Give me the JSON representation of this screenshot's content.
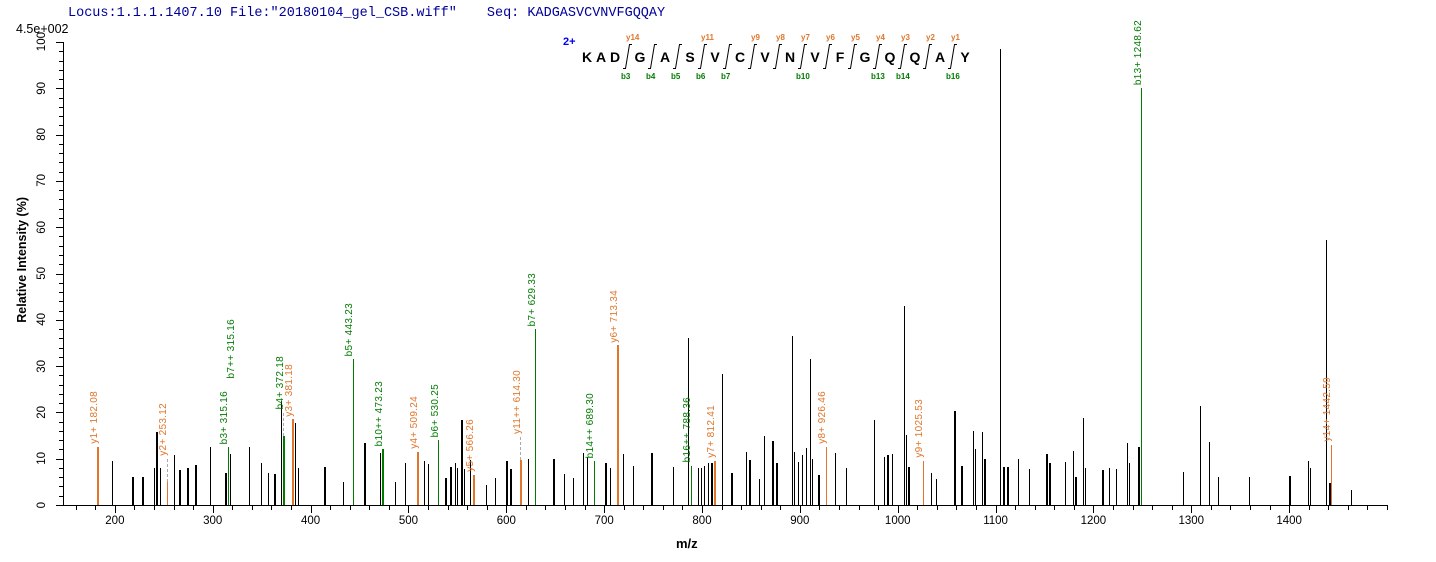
{
  "header": {
    "locus_file": "Locus:1.1.1.1407.10 File:\"20180104_gel_CSB.wiff\"",
    "seq_label": "Seq: ",
    "sequence_text": "KADGASVCVNVFGQQAY"
  },
  "axis_note": {
    "max_intensity_label": "4.5e+002"
  },
  "chart_data": {
    "type": "bar",
    "subtype": "ms2-mass-spectrum",
    "title": "",
    "xlabel": "m/z",
    "ylabel": "Relative  Intensity (%)",
    "xlim": [
      148,
      1500
    ],
    "ylim": [
      0,
      100
    ],
    "x_ticks": [
      200,
      300,
      400,
      500,
      600,
      700,
      800,
      900,
      1000,
      1100,
      1200,
      1300,
      1400
    ],
    "x_minor_step": 20,
    "y_ticks": [
      0,
      10,
      20,
      30,
      40,
      50,
      60,
      70,
      80,
      90,
      100
    ],
    "y_minor_step": 2,
    "grid": false,
    "legend": false,
    "precursor_charge": "2+",
    "sequence": [
      "K",
      "A",
      "D",
      "G",
      "A",
      "S",
      "V",
      "C",
      "V",
      "N",
      "V",
      "F",
      "G",
      "Q",
      "Q",
      "A",
      "Y"
    ],
    "fragment_markers": [
      {
        "after_residue": 3,
        "y_label": "y14",
        "b_label": "b3"
      },
      {
        "after_residue": 4,
        "y_label": "",
        "b_label": "b4"
      },
      {
        "after_residue": 5,
        "y_label": "",
        "b_label": "b5"
      },
      {
        "after_residue": 6,
        "y_label": "y11",
        "b_label": "b6"
      },
      {
        "after_residue": 7,
        "y_label": "",
        "b_label": "b7"
      },
      {
        "after_residue": 8,
        "y_label": "y9",
        "b_label": ""
      },
      {
        "after_residue": 9,
        "y_label": "y8",
        "b_label": ""
      },
      {
        "after_residue": 10,
        "y_label": "y7",
        "b_label": "b10"
      },
      {
        "after_residue": 11,
        "y_label": "y6",
        "b_label": ""
      },
      {
        "after_residue": 12,
        "y_label": "y5",
        "b_label": ""
      },
      {
        "after_residue": 13,
        "y_label": "y4",
        "b_label": "b13"
      },
      {
        "after_residue": 14,
        "y_label": "y3",
        "b_label": "b14"
      },
      {
        "after_residue": 15,
        "y_label": "y2",
        "b_label": ""
      },
      {
        "after_residue": 16,
        "y_label": "y1",
        "b_label": "b16"
      }
    ],
    "labeled_peaks": [
      {
        "label": "y1+ 182.08",
        "series": "y",
        "mz": 182.08,
        "intensity": 12.5,
        "dashed": false,
        "stack": 0
      },
      {
        "label": "y2+ 253.12",
        "series": "y",
        "mz": 253.12,
        "intensity": 5,
        "dashed": true,
        "stack": 0
      },
      {
        "label": "b3+ 315.16",
        "series": "b",
        "mz": 315.16,
        "intensity": 12.5,
        "dashed": false,
        "stack": 0
      },
      {
        "label": "b7++ 315.16",
        "series": "b",
        "mz": 315.16,
        "intensity": 12.5,
        "dashed": false,
        "stack": 1
      },
      {
        "label": "b4+ 372.18",
        "series": "b",
        "mz": 372.18,
        "intensity": 15,
        "dashed": true,
        "stack": 0
      },
      {
        "label": "y3+ 381.18",
        "series": "y",
        "mz": 381.18,
        "intensity": 18.5,
        "dashed": false,
        "stack": 0
      },
      {
        "label": "b5+ 443.23",
        "series": "b",
        "mz": 443.23,
        "intensity": 31.5,
        "dashed": false,
        "stack": 0
      },
      {
        "label": "b10++ 473.23",
        "series": "b",
        "mz": 473.23,
        "intensity": 12,
        "dashed": false,
        "stack": 0
      },
      {
        "label": "y4+ 509.24",
        "series": "y",
        "mz": 509.24,
        "intensity": 11.5,
        "dashed": false,
        "stack": 0
      },
      {
        "label": "b6+ 530.25",
        "series": "b",
        "mz": 530.25,
        "intensity": 14,
        "dashed": false,
        "stack": 0
      },
      {
        "label": "y5+ 566.26",
        "series": "y",
        "mz": 566.26,
        "intensity": 6.5,
        "dashed": false,
        "stack": 0
      },
      {
        "label": "y11++ 614.30",
        "series": "y",
        "mz": 614.3,
        "intensity": 9.7,
        "dashed": true,
        "stack": 0
      },
      {
        "label": "b7+ 629.33",
        "series": "b",
        "mz": 629.33,
        "intensity": 38,
        "dashed": false,
        "stack": 0
      },
      {
        "label": "b14++ 689.30",
        "series": "b",
        "mz": 689.3,
        "intensity": 9.5,
        "dashed": false,
        "stack": 0
      },
      {
        "label": "y6+ 713.34",
        "series": "y",
        "mz": 713.34,
        "intensity": 34.5,
        "dashed": false,
        "stack": 0
      },
      {
        "label": "b16++ 788.36",
        "series": "b",
        "mz": 788.36,
        "intensity": 8.5,
        "dashed": false,
        "stack": 0
      },
      {
        "label": "y7+ 812.41",
        "series": "y",
        "mz": 812.41,
        "intensity": 9.5,
        "dashed": false,
        "stack": 0
      },
      {
        "label": "y8+ 926.46",
        "series": "y",
        "mz": 926.46,
        "intensity": 12.5,
        "dashed": false,
        "stack": 0
      },
      {
        "label": "y9+ 1025.53",
        "series": "y",
        "mz": 1025.53,
        "intensity": 9.5,
        "dashed": false,
        "stack": 0
      },
      {
        "label": "b13+ 1248.62",
        "series": "b",
        "mz": 1248.62,
        "intensity": 90,
        "dashed": false,
        "stack": 0
      },
      {
        "label": "y14+ 1442.59",
        "series": "y",
        "mz": 1442.59,
        "intensity": 13,
        "dashed": false,
        "stack": 0
      }
    ],
    "unlabeled_peaks": [
      [
        197,
        9.4
      ],
      [
        218,
        6.1
      ],
      [
        228,
        6.1
      ],
      [
        240,
        8.1
      ],
      [
        242.5,
        15.8
      ],
      [
        246,
        8
      ],
      [
        260,
        10.8
      ],
      [
        266,
        7.5
      ],
      [
        274,
        8.1
      ],
      [
        282,
        8.6
      ],
      [
        297,
        12.6
      ],
      [
        313,
        7
      ],
      [
        317.5,
        11
      ],
      [
        337,
        12.6
      ],
      [
        349,
        9
      ],
      [
        356,
        7
      ],
      [
        363,
        6.8
      ],
      [
        369.5,
        22.5
      ],
      [
        384,
        17.8
      ],
      [
        387,
        8
      ],
      [
        414,
        8.3
      ],
      [
        433,
        5
      ],
      [
        455,
        13.3
      ],
      [
        471,
        11.2
      ],
      [
        486,
        5
      ],
      [
        496,
        9
      ],
      [
        515.7,
        9.5
      ],
      [
        519.8,
        8.8
      ],
      [
        537.5,
        5.8
      ],
      [
        542.6,
        8.3
      ],
      [
        547.5,
        9
      ],
      [
        549.5,
        8
      ],
      [
        554,
        18.4
      ],
      [
        556.5,
        7.7
      ],
      [
        563,
        9.8
      ],
      [
        579,
        4.3
      ],
      [
        588,
        5.9
      ],
      [
        600,
        9.4
      ],
      [
        604,
        7.8
      ],
      [
        622,
        9.9
      ],
      [
        648,
        10
      ],
      [
        659,
        6.8
      ],
      [
        668,
        5.9
      ],
      [
        678,
        11.2
      ],
      [
        682,
        10.3
      ],
      [
        701,
        9.1
      ],
      [
        706,
        8
      ],
      [
        719,
        11
      ],
      [
        729,
        8.4
      ],
      [
        748,
        11.3
      ],
      [
        770,
        8.2
      ],
      [
        785.3,
        36
      ],
      [
        796,
        8
      ],
      [
        799,
        8
      ],
      [
        802,
        8.5
      ],
      [
        806,
        9
      ],
      [
        809.5,
        9
      ],
      [
        820,
        28.4
      ],
      [
        830,
        6.9
      ],
      [
        845,
        11.5
      ],
      [
        848.5,
        9.7
      ],
      [
        858,
        5.6
      ],
      [
        863,
        14.8
      ],
      [
        872,
        13.9
      ],
      [
        876,
        9
      ],
      [
        891.5,
        36.4
      ],
      [
        893.5,
        11.5
      ],
      [
        898,
        9.3
      ],
      [
        902,
        10.8
      ],
      [
        906,
        12.4
      ],
      [
        910,
        31.5
      ],
      [
        912,
        10
      ],
      [
        919,
        6.5
      ],
      [
        936,
        11.2
      ],
      [
        947,
        8
      ],
      [
        975.5,
        18.4
      ],
      [
        986,
        10.4
      ],
      [
        989.5,
        10.9
      ],
      [
        994,
        11
      ],
      [
        1006,
        43
      ],
      [
        1008.5,
        15.1
      ],
      [
        1011,
        8.3
      ],
      [
        1034,
        7
      ],
      [
        1039,
        5.7
      ],
      [
        1058,
        20.2
      ],
      [
        1065,
        8.5
      ],
      [
        1076.5,
        16
      ],
      [
        1078.5,
        12
      ],
      [
        1086,
        15.8
      ],
      [
        1088.5,
        10
      ],
      [
        1104.5,
        98.5
      ],
      [
        1108,
        8.3
      ],
      [
        1112,
        8.3
      ],
      [
        1123,
        10
      ],
      [
        1134,
        7.7
      ],
      [
        1152,
        11
      ],
      [
        1155,
        9
      ],
      [
        1171,
        9.2
      ],
      [
        1179,
        11.7
      ],
      [
        1181.5,
        6
      ],
      [
        1189,
        18.8
      ],
      [
        1191,
        8
      ],
      [
        1209,
        7.6
      ],
      [
        1216,
        8
      ],
      [
        1223,
        7.8
      ],
      [
        1234,
        13.5
      ],
      [
        1236,
        9
      ],
      [
        1246,
        12.5
      ],
      [
        1291.6,
        7.2
      ],
      [
        1308.6,
        21.4
      ],
      [
        1318,
        13.7
      ],
      [
        1327,
        6
      ],
      [
        1358.5,
        6
      ],
      [
        1400,
        6.2
      ],
      [
        1419,
        9.5
      ],
      [
        1421,
        8
      ],
      [
        1437.7,
        57.2
      ],
      [
        1441,
        4.7
      ],
      [
        1463,
        3.2
      ]
    ],
    "colors": {
      "b_ion": "#007B00",
      "y_ion": "#E0762C",
      "peak": "#000000",
      "precursor": "#0000EE",
      "header_text": "#000099",
      "dashed_connector": "#AAAAAA"
    }
  }
}
